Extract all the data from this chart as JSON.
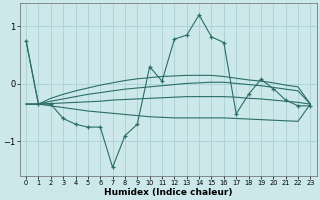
{
  "xlabel": "Humidex (Indice chaleur)",
  "x": [
    0,
    1,
    2,
    3,
    4,
    5,
    6,
    7,
    8,
    9,
    10,
    11,
    12,
    13,
    14,
    15,
    16,
    17,
    18,
    19,
    20,
    21,
    22,
    23
  ],
  "main_line": [
    0.75,
    -0.35,
    -0.35,
    -0.6,
    -0.7,
    -0.75,
    -0.75,
    -1.45,
    -0.9,
    -0.7,
    0.3,
    0.05,
    0.78,
    0.85,
    1.2,
    0.82,
    0.72,
    -0.52,
    -0.18,
    0.08,
    -0.08,
    -0.28,
    -0.38,
    -0.38
  ],
  "line1": [
    0.75,
    -0.35,
    -0.25,
    -0.18,
    -0.12,
    -0.07,
    -0.02,
    0.02,
    0.06,
    0.09,
    0.11,
    0.13,
    0.14,
    0.15,
    0.15,
    0.15,
    0.13,
    0.1,
    0.07,
    0.05,
    0.02,
    -0.02,
    -0.05,
    -0.35
  ],
  "line2": [
    -0.35,
    -0.35,
    -0.3,
    -0.26,
    -0.22,
    -0.18,
    -0.15,
    -0.12,
    -0.09,
    -0.07,
    -0.05,
    -0.03,
    -0.01,
    0.01,
    0.02,
    0.03,
    0.03,
    0.01,
    -0.01,
    -0.03,
    -0.06,
    -0.09,
    -0.12,
    -0.35
  ],
  "line3": [
    -0.35,
    -0.35,
    -0.34,
    -0.33,
    -0.32,
    -0.31,
    -0.3,
    -0.28,
    -0.27,
    -0.26,
    -0.25,
    -0.24,
    -0.23,
    -0.22,
    -0.22,
    -0.22,
    -0.22,
    -0.23,
    -0.25,
    -0.26,
    -0.28,
    -0.3,
    -0.32,
    -0.35
  ],
  "line4": [
    -0.35,
    -0.35,
    -0.38,
    -0.41,
    -0.44,
    -0.47,
    -0.49,
    -0.51,
    -0.53,
    -0.55,
    -0.57,
    -0.58,
    -0.59,
    -0.59,
    -0.59,
    -0.59,
    -0.59,
    -0.6,
    -0.61,
    -0.62,
    -0.63,
    -0.64,
    -0.65,
    -0.35
  ],
  "line_color": "#2a6e65",
  "bg_color": "#cce8ea",
  "grid_color": "#aacfd3",
  "ylim": [
    -1.6,
    1.4
  ],
  "xlim": [
    -0.5,
    23.5
  ],
  "yticks": [
    -1,
    0,
    1
  ],
  "xticks": [
    0,
    1,
    2,
    3,
    4,
    5,
    6,
    7,
    8,
    9,
    10,
    11,
    12,
    13,
    14,
    15,
    16,
    17,
    18,
    19,
    20,
    21,
    22,
    23
  ]
}
